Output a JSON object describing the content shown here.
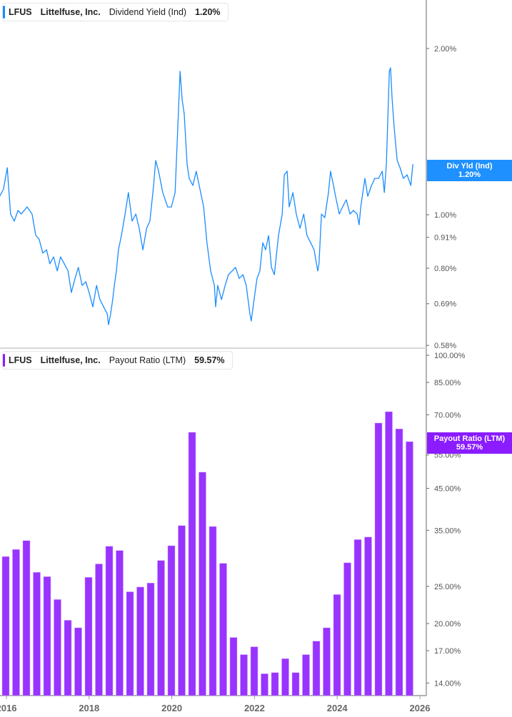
{
  "top_legend": {
    "ticker": "LFUS",
    "company": "Littelfuse, Inc.",
    "metric": "Dividend Yield (Ind)",
    "value": "1.20%",
    "color": "#1a8cff"
  },
  "top_tag": {
    "label": "Div Yld (Ind)",
    "value": "1.20%",
    "color": "#1e90ff"
  },
  "bottom_legend": {
    "ticker": "LFUS",
    "company": "Littelfuse, Inc.",
    "metric": "Payout Ratio (LTM)",
    "value": "59.57%",
    "color": "#8a1cff"
  },
  "bottom_tag": {
    "label": "Payout Ratio (LTM)",
    "value": "59.57%",
    "color": "#8a1cff"
  },
  "chart_data": [
    {
      "type": "line",
      "scale": "log",
      "series": [
        {
          "color": "#1a8cff",
          "points": [
            [
              2015.84,
              1.08
            ],
            [
              2015.93,
              1.113
            ],
            [
              2016.02,
              1.217
            ],
            [
              2016.05,
              1.13
            ],
            [
              2016.1,
              1.003
            ],
            [
              2016.19,
              0.974
            ],
            [
              2016.28,
              1.018
            ],
            [
              2016.36,
              1.003
            ],
            [
              2016.5,
              1.033
            ],
            [
              2016.62,
              1.003
            ],
            [
              2016.71,
              0.917
            ],
            [
              2016.79,
              0.904
            ],
            [
              2016.88,
              0.852
            ],
            [
              2016.97,
              0.864
            ],
            [
              2017.05,
              0.815
            ],
            [
              2017.14,
              0.839
            ],
            [
              2017.23,
              0.791
            ],
            [
              2017.31,
              0.839
            ],
            [
              2017.4,
              0.815
            ],
            [
              2017.49,
              0.791
            ],
            [
              2017.57,
              0.723
            ],
            [
              2017.66,
              0.767
            ],
            [
              2017.74,
              0.803
            ],
            [
              2017.83,
              0.745
            ],
            [
              2017.92,
              0.756
            ],
            [
              2018.0,
              0.723
            ],
            [
              2018.09,
              0.681
            ],
            [
              2018.18,
              0.745
            ],
            [
              2018.26,
              0.702
            ],
            [
              2018.35,
              0.681
            ],
            [
              2018.44,
              0.661
            ],
            [
              2018.47,
              0.632
            ],
            [
              2018.52,
              0.661
            ],
            [
              2018.57,
              0.702
            ],
            [
              2018.61,
              0.745
            ],
            [
              2018.66,
              0.791
            ],
            [
              2018.71,
              0.864
            ],
            [
              2018.78,
              0.917
            ],
            [
              2018.87,
              1.003
            ],
            [
              2018.95,
              1.097
            ],
            [
              2019.04,
              0.974
            ],
            [
              2019.13,
              1.003
            ],
            [
              2019.21,
              0.945
            ],
            [
              2019.3,
              0.864
            ],
            [
              2019.39,
              0.945
            ],
            [
              2019.47,
              0.974
            ],
            [
              2019.56,
              1.13
            ],
            [
              2019.61,
              1.254
            ],
            [
              2019.68,
              1.199
            ],
            [
              2019.78,
              1.097
            ],
            [
              2019.9,
              1.033
            ],
            [
              2019.99,
              1.033
            ],
            [
              2020.08,
              1.097
            ],
            [
              2020.13,
              1.351
            ],
            [
              2020.2,
              1.819
            ],
            [
              2020.25,
              1.615
            ],
            [
              2020.3,
              1.521
            ],
            [
              2020.37,
              1.235
            ],
            [
              2020.42,
              1.164
            ],
            [
              2020.51,
              1.13
            ],
            [
              2020.59,
              1.199
            ],
            [
              2020.68,
              1.113
            ],
            [
              2020.77,
              1.033
            ],
            [
              2020.85,
              0.89
            ],
            [
              2020.94,
              0.791
            ],
            [
              2021.03,
              0.745
            ],
            [
              2021.06,
              0.681
            ],
            [
              2021.11,
              0.745
            ],
            [
              2021.2,
              0.702
            ],
            [
              2021.29,
              0.745
            ],
            [
              2021.37,
              0.779
            ],
            [
              2021.46,
              0.791
            ],
            [
              2021.54,
              0.803
            ],
            [
              2021.63,
              0.767
            ],
            [
              2021.72,
              0.779
            ],
            [
              2021.8,
              0.745
            ],
            [
              2021.89,
              0.661
            ],
            [
              2021.92,
              0.642
            ],
            [
              2021.99,
              0.702
            ],
            [
              2022.06,
              0.767
            ],
            [
              2022.13,
              0.791
            ],
            [
              2022.2,
              0.89
            ],
            [
              2022.27,
              0.864
            ],
            [
              2022.34,
              0.917
            ],
            [
              2022.41,
              0.803
            ],
            [
              2022.48,
              0.779
            ],
            [
              2022.58,
              0.917
            ],
            [
              2022.67,
              1.003
            ],
            [
              2022.72,
              1.181
            ],
            [
              2022.79,
              1.199
            ],
            [
              2022.84,
              1.033
            ],
            [
              2022.93,
              1.097
            ],
            [
              2023.01,
              1.003
            ],
            [
              2023.1,
              0.945
            ],
            [
              2023.19,
              1.003
            ],
            [
              2023.27,
              0.917
            ],
            [
              2023.36,
              0.89
            ],
            [
              2023.44,
              0.864
            ],
            [
              2023.53,
              0.791
            ],
            [
              2023.56,
              0.815
            ],
            [
              2023.62,
              1.003
            ],
            [
              2023.7,
              0.988
            ],
            [
              2023.79,
              1.097
            ],
            [
              2023.84,
              1.199
            ],
            [
              2023.91,
              1.13
            ],
            [
              2023.96,
              1.08
            ],
            [
              2024.05,
              1.003
            ],
            [
              2024.13,
              1.033
            ],
            [
              2024.22,
              1.064
            ],
            [
              2024.31,
              1.003
            ],
            [
              2024.39,
              1.018
            ],
            [
              2024.48,
              1.003
            ],
            [
              2024.53,
              0.959
            ],
            [
              2024.57,
              1.033
            ],
            [
              2024.62,
              1.097
            ],
            [
              2024.67,
              1.164
            ],
            [
              2024.74,
              1.08
            ],
            [
              2024.83,
              1.13
            ],
            [
              2024.91,
              1.164
            ],
            [
              2025.0,
              1.164
            ],
            [
              2025.09,
              1.199
            ],
            [
              2025.14,
              1.097
            ],
            [
              2025.19,
              1.235
            ],
            [
              2025.26,
              1.819
            ],
            [
              2025.29,
              1.845
            ],
            [
              2025.33,
              1.615
            ],
            [
              2025.38,
              1.433
            ],
            [
              2025.45,
              1.254
            ],
            [
              2025.52,
              1.217
            ],
            [
              2025.6,
              1.164
            ],
            [
              2025.69,
              1.181
            ],
            [
              2025.78,
              1.13
            ],
            [
              2025.83,
              1.235
            ]
          ]
        }
      ],
      "ytick_labels": [
        "2.00%",
        "1.00%",
        "0.91%",
        "0.80%",
        "0.69%",
        "0.58%"
      ],
      "ytick_values": [
        2.0,
        1.0,
        0.91,
        0.8,
        0.69,
        0.58
      ],
      "ylim": [
        0.58,
        2.3
      ],
      "current_value": 1.2
    },
    {
      "type": "bar",
      "scale": "log",
      "categories": [
        "2016 Q1",
        "2016 Q2",
        "2016 Q3",
        "2016 Q4",
        "2017 Q1",
        "2017 Q2",
        "2017 Q3",
        "2017 Q4",
        "2018 Q1",
        "2018 Q2",
        "2018 Q3",
        "2018 Q4",
        "2019 Q1",
        "2019 Q2",
        "2019 Q3",
        "2019 Q4",
        "2020 Q1",
        "2020 Q2",
        "2020 Q3",
        "2020 Q4",
        "2021 Q1",
        "2021 Q2",
        "2021 Q3",
        "2021 Q4",
        "2022 Q1",
        "2022 Q2",
        "2022 Q3",
        "2022 Q4",
        "2023 Q1",
        "2023 Q2",
        "2023 Q3",
        "2023 Q4",
        "2024 Q1",
        "2024 Q2",
        "2024 Q3",
        "2024 Q4",
        "2025 Q1",
        "2025 Q2",
        "2025 Q3",
        "2025 Q4"
      ],
      "values": [
        29.9,
        31.2,
        32.9,
        27.2,
        26.5,
        23.1,
        20.4,
        19.5,
        26.4,
        28.6,
        31.8,
        31.0,
        24.2,
        24.9,
        25.5,
        29.2,
        31.9,
        36.0,
        63.0,
        49.6,
        35.8,
        28.7,
        18.4,
        16.6,
        17.4,
        14.8,
        14.9,
        16.2,
        14.9,
        16.6,
        18.0,
        19.5,
        23.8,
        28.8,
        33.1,
        33.6,
        66.6,
        71.3,
        64.3,
        59.57
      ],
      "color": "#9933ff",
      "ytick_labels": [
        "100.00%",
        "85.00%",
        "70.00%",
        "55.00%",
        "45.00%",
        "35.00%",
        "25.00%",
        "20.00%",
        "17.00%",
        "14.00%"
      ],
      "ytick_values": [
        100,
        85,
        70,
        55,
        45,
        35,
        25,
        20,
        17,
        14
      ],
      "ylim": [
        13.05,
        100
      ],
      "xtick_labels": [
        "2016",
        "2018",
        "2020",
        "2022",
        "2024",
        "2026"
      ]
    }
  ]
}
